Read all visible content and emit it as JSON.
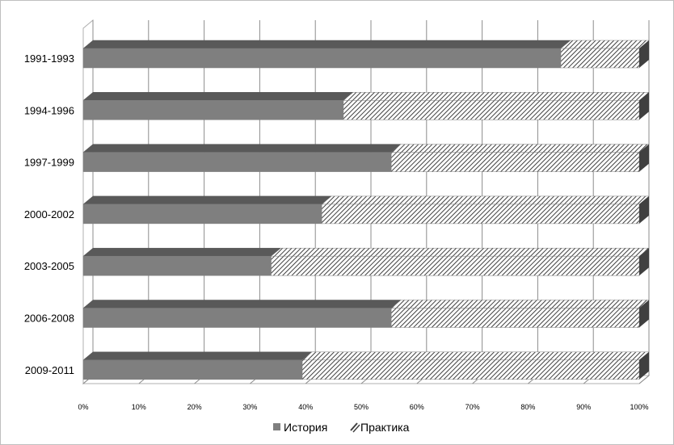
{
  "chart_data": {
    "type": "bar",
    "orientation": "horizontal",
    "stacked": "percent",
    "categories": [
      "1991-1993",
      "1994-1996",
      "1997-1999",
      "2000-2002",
      "2003-2005",
      "2006-2008",
      "2009-2011"
    ],
    "series": [
      {
        "name": "История",
        "values": [
          85.9,
          46.8,
          55.4,
          42.9,
          33.8,
          55.4,
          39.4
        ],
        "color": "#7f7f7f"
      },
      {
        "name": "Практика",
        "values": [
          14.1,
          53.2,
          44.6,
          57.1,
          66.2,
          44.6,
          60.6
        ],
        "color": "#ffffff",
        "pattern": "diagonal-hatch"
      }
    ],
    "x_ticks": [
      "0%",
      "10%",
      "20%",
      "30%",
      "40%",
      "50%",
      "60%",
      "70%",
      "80%",
      "90%",
      "100%"
    ],
    "xlim": [
      0,
      100
    ],
    "grid": true,
    "style_3d": true,
    "legend_position": "bottom"
  }
}
